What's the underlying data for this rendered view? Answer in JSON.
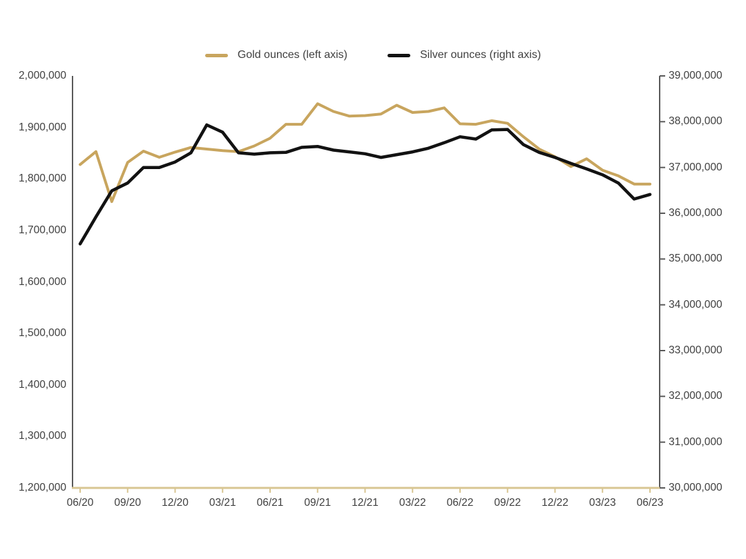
{
  "page": {
    "background": "#ffffff"
  },
  "legend": {
    "items": [
      {
        "label": "Gold ounces (left axis)",
        "color": "#c8a55e"
      },
      {
        "label": "Silver ounces (right axis)",
        "color": "#121212"
      }
    ]
  },
  "chart_data": {
    "type": "line",
    "title": "",
    "grid": false,
    "legend_position": "top-center",
    "x_interval": "monthly",
    "x": [
      "06/20",
      "07/20",
      "08/20",
      "09/20",
      "10/20",
      "11/20",
      "12/20",
      "01/21",
      "02/21",
      "03/21",
      "04/21",
      "05/21",
      "06/21",
      "07/21",
      "08/21",
      "09/21",
      "10/21",
      "11/21",
      "12/21",
      "01/22",
      "02/22",
      "03/22",
      "04/22",
      "05/22",
      "06/22",
      "07/22",
      "08/22",
      "09/22",
      "10/22",
      "11/22",
      "12/22",
      "01/23",
      "02/23",
      "03/23",
      "04/23",
      "05/23",
      "06/23"
    ],
    "x_tick_labels": [
      "06/20",
      "09/20",
      "12/20",
      "03/21",
      "06/21",
      "09/21",
      "12/21",
      "03/22",
      "06/22",
      "09/22",
      "12/22",
      "03/23",
      "06/23"
    ],
    "left_axis": {
      "min": 1200000,
      "max": 2000000,
      "step": 100000,
      "tick_labels": [
        "2,000,000",
        "1,900,000",
        "1,800,000",
        "1,700,000",
        "1,600,000",
        "1,500,000",
        "1,400,000",
        "1,300,000",
        "1,200,000"
      ]
    },
    "right_axis": {
      "min": 30000000,
      "max": 39000000,
      "step": 1000000,
      "tick_labels": [
        "39,000,000",
        "38,000,000",
        "37,000,000",
        "36,000,000",
        "35,000,000",
        "34,000,000",
        "33,000,000",
        "32,000,000",
        "31,000,000",
        "30,000,000"
      ]
    },
    "series": [
      {
        "name": "Gold ounces (left axis)",
        "axis": "left",
        "color": "#c8a55e",
        "stroke_width": 4,
        "values": [
          1828000,
          1853000,
          1756000,
          1832000,
          1854000,
          1842000,
          1852000,
          1861000,
          1858000,
          1855000,
          1853000,
          1864000,
          1879000,
          1906000,
          1906000,
          1946000,
          1931000,
          1922000,
          1923000,
          1926000,
          1943000,
          1929000,
          1931000,
          1938000,
          1907000,
          1906000,
          1913000,
          1908000,
          1882000,
          1858000,
          1843000,
          1824000,
          1839000,
          1817000,
          1806000,
          1790000,
          1790000
        ]
      },
      {
        "name": "Silver ounces (right axis)",
        "axis": "right",
        "color": "#121212",
        "stroke_width": 4.5,
        "values": [
          35330000,
          35920000,
          36490000,
          36660000,
          37000000,
          37000000,
          37120000,
          37320000,
          37930000,
          37770000,
          37320000,
          37290000,
          37320000,
          37330000,
          37440000,
          37460000,
          37380000,
          37340000,
          37300000,
          37220000,
          37280000,
          37340000,
          37420000,
          37540000,
          37670000,
          37620000,
          37820000,
          37830000,
          37500000,
          37330000,
          37220000,
          37090000,
          36970000,
          36840000,
          36660000,
          36310000,
          36410000
        ]
      }
    ],
    "style": {
      "left_axis_line_color": "#5a5a5a",
      "right_axis_line_color": "#5a5a5a",
      "bottom_axis_line_color": "#d8c folder93",
      "bottom_axis_color": "#d8c693",
      "label_color": "#404040"
    }
  }
}
